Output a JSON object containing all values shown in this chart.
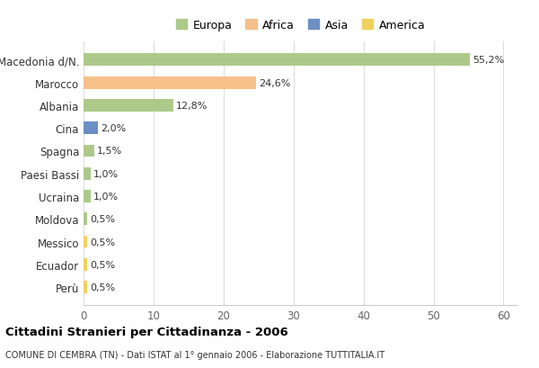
{
  "categories": [
    "Macedonia d/N.",
    "Marocco",
    "Albania",
    "Cina",
    "Spagna",
    "Paesi Bassi",
    "Ucraina",
    "Moldova",
    "Messico",
    "Ecuador",
    "Perù"
  ],
  "values": [
    55.2,
    24.6,
    12.8,
    2.0,
    1.5,
    1.0,
    1.0,
    0.5,
    0.5,
    0.5,
    0.5
  ],
  "labels": [
    "55,2%",
    "24,6%",
    "12,8%",
    "2,0%",
    "1,5%",
    "1,0%",
    "1,0%",
    "0,5%",
    "0,5%",
    "0,5%",
    "0,5%"
  ],
  "colors": [
    "#adc98a",
    "#f5c08a",
    "#adc98a",
    "#6b8fc2",
    "#adc98a",
    "#adc98a",
    "#adc98a",
    "#adc98a",
    "#f0d060",
    "#f0d060",
    "#f0d060"
  ],
  "legend_labels": [
    "Europa",
    "Africa",
    "Asia",
    "America"
  ],
  "legend_colors": [
    "#adc98a",
    "#f5c08a",
    "#6b8fc2",
    "#f0d060"
  ],
  "title": "Cittadini Stranieri per Cittadinanza - 2006",
  "subtitle": "COMUNE DI CEMBRA (TN) - Dati ISTAT al 1° gennaio 2006 - Elaborazione TUTTITALIA.IT",
  "xlim": [
    0,
    62
  ],
  "xticks": [
    0,
    10,
    20,
    30,
    40,
    50,
    60
  ],
  "background_color": "#ffffff",
  "plot_bg_color": "#ffffff",
  "grid_color": "#dddddd",
  "bar_height": 0.55
}
